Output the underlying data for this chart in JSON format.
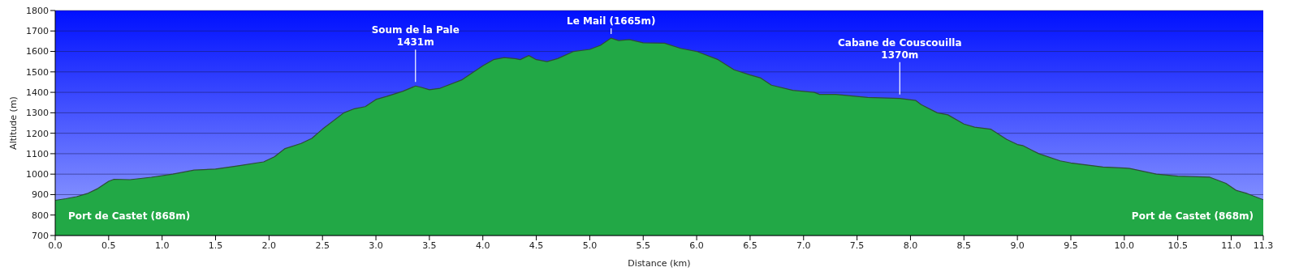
{
  "chart_data": {
    "type": "area",
    "xlabel": "Distance   (km)",
    "ylabel": "Altitude (m)",
    "x": [
      0,
      0.1,
      0.2,
      0.3,
      0.4,
      0.5,
      0.55,
      0.7,
      0.9,
      1.1,
      1.3,
      1.5,
      1.7,
      1.95,
      2.05,
      2.15,
      2.3,
      2.4,
      2.5,
      2.7,
      2.8,
      2.9,
      3.0,
      3.1,
      3.25,
      3.37,
      3.42,
      3.5,
      3.6,
      3.8,
      4.0,
      4.1,
      4.2,
      4.3,
      4.35,
      4.43,
      4.5,
      4.6,
      4.7,
      4.85,
      5.0,
      5.1,
      5.2,
      5.27,
      5.37,
      5.5,
      5.7,
      5.85,
      6.0,
      6.2,
      6.35,
      6.5,
      6.6,
      6.7,
      6.9,
      7.1,
      7.15,
      7.3,
      7.6,
      7.9,
      8.05,
      8.1,
      8.25,
      8.35,
      8.5,
      8.6,
      8.75,
      8.9,
      9.0,
      9.05,
      9.2,
      9.4,
      9.5,
      9.8,
      10.0,
      10.05,
      10.3,
      10.5,
      10.8,
      10.95,
      11.05,
      11.15,
      11.3
    ],
    "series": [
      {
        "color": "#22a846",
        "values": [
          872,
          880,
          890,
          905,
          930,
          965,
          975,
          973,
          985,
          1000,
          1020,
          1025,
          1040,
          1060,
          1085,
          1125,
          1150,
          1175,
          1220,
          1300,
          1320,
          1330,
          1365,
          1380,
          1405,
          1431,
          1425,
          1413,
          1420,
          1460,
          1530,
          1560,
          1570,
          1565,
          1560,
          1580,
          1560,
          1550,
          1565,
          1600,
          1610,
          1630,
          1665,
          1653,
          1658,
          1642,
          1640,
          1615,
          1600,
          1560,
          1510,
          1485,
          1470,
          1435,
          1410,
          1400,
          1390,
          1390,
          1375,
          1370,
          1360,
          1340,
          1300,
          1290,
          1245,
          1230,
          1220,
          1170,
          1145,
          1140,
          1100,
          1065,
          1055,
          1035,
          1030,
          1028,
          1000,
          990,
          985,
          955,
          920,
          905,
          875
        ]
      }
    ],
    "xlim": [
      0,
      11.3
    ],
    "xticks": [
      {
        "value": 0,
        "label": "0.0"
      },
      0.5,
      {
        "value": 1,
        "label": "1.0"
      },
      1.5,
      {
        "value": 2,
        "label": "2.0"
      },
      2.5,
      {
        "value": 3,
        "label": "3.0"
      },
      3.5,
      {
        "value": 4,
        "label": "4.0"
      },
      4.5,
      {
        "value": 5,
        "label": "5.0"
      },
      5.5,
      {
        "value": 6,
        "label": "6.0"
      },
      6.5,
      {
        "value": 7,
        "label": "7.0"
      },
      7.5,
      {
        "value": 8,
        "label": "8.0"
      },
      8.5,
      {
        "value": 9,
        "label": "9.0"
      },
      9.5,
      {
        "value": 10,
        "label": "10.0"
      },
      10.5,
      {
        "value": 11,
        "label": "11.0"
      },
      11.3
    ],
    "ylim": [
      700,
      1800
    ],
    "yticks": [
      700,
      800,
      900,
      1000,
      1100,
      1200,
      1300,
      1400,
      1500,
      1600,
      1700,
      1800
    ],
    "grid": "y",
    "marker": "none",
    "line_style": "solid",
    "annotations": [
      {
        "text": "Port de Castet (868m)",
        "x": 0,
        "y": 868
      },
      {
        "text": "Soum de la Pale\n1431m",
        "x": 3.37,
        "y": 1431
      },
      {
        "text": "Le Mail (1665m)",
        "x": 5.2,
        "y": 1665
      },
      {
        "text": "Cabane de Couscouilla\n1370m",
        "x": 7.9,
        "y": 1370
      },
      {
        "text": "Port de Castet (868m)",
        "x": 11.3,
        "y": 868
      }
    ]
  }
}
